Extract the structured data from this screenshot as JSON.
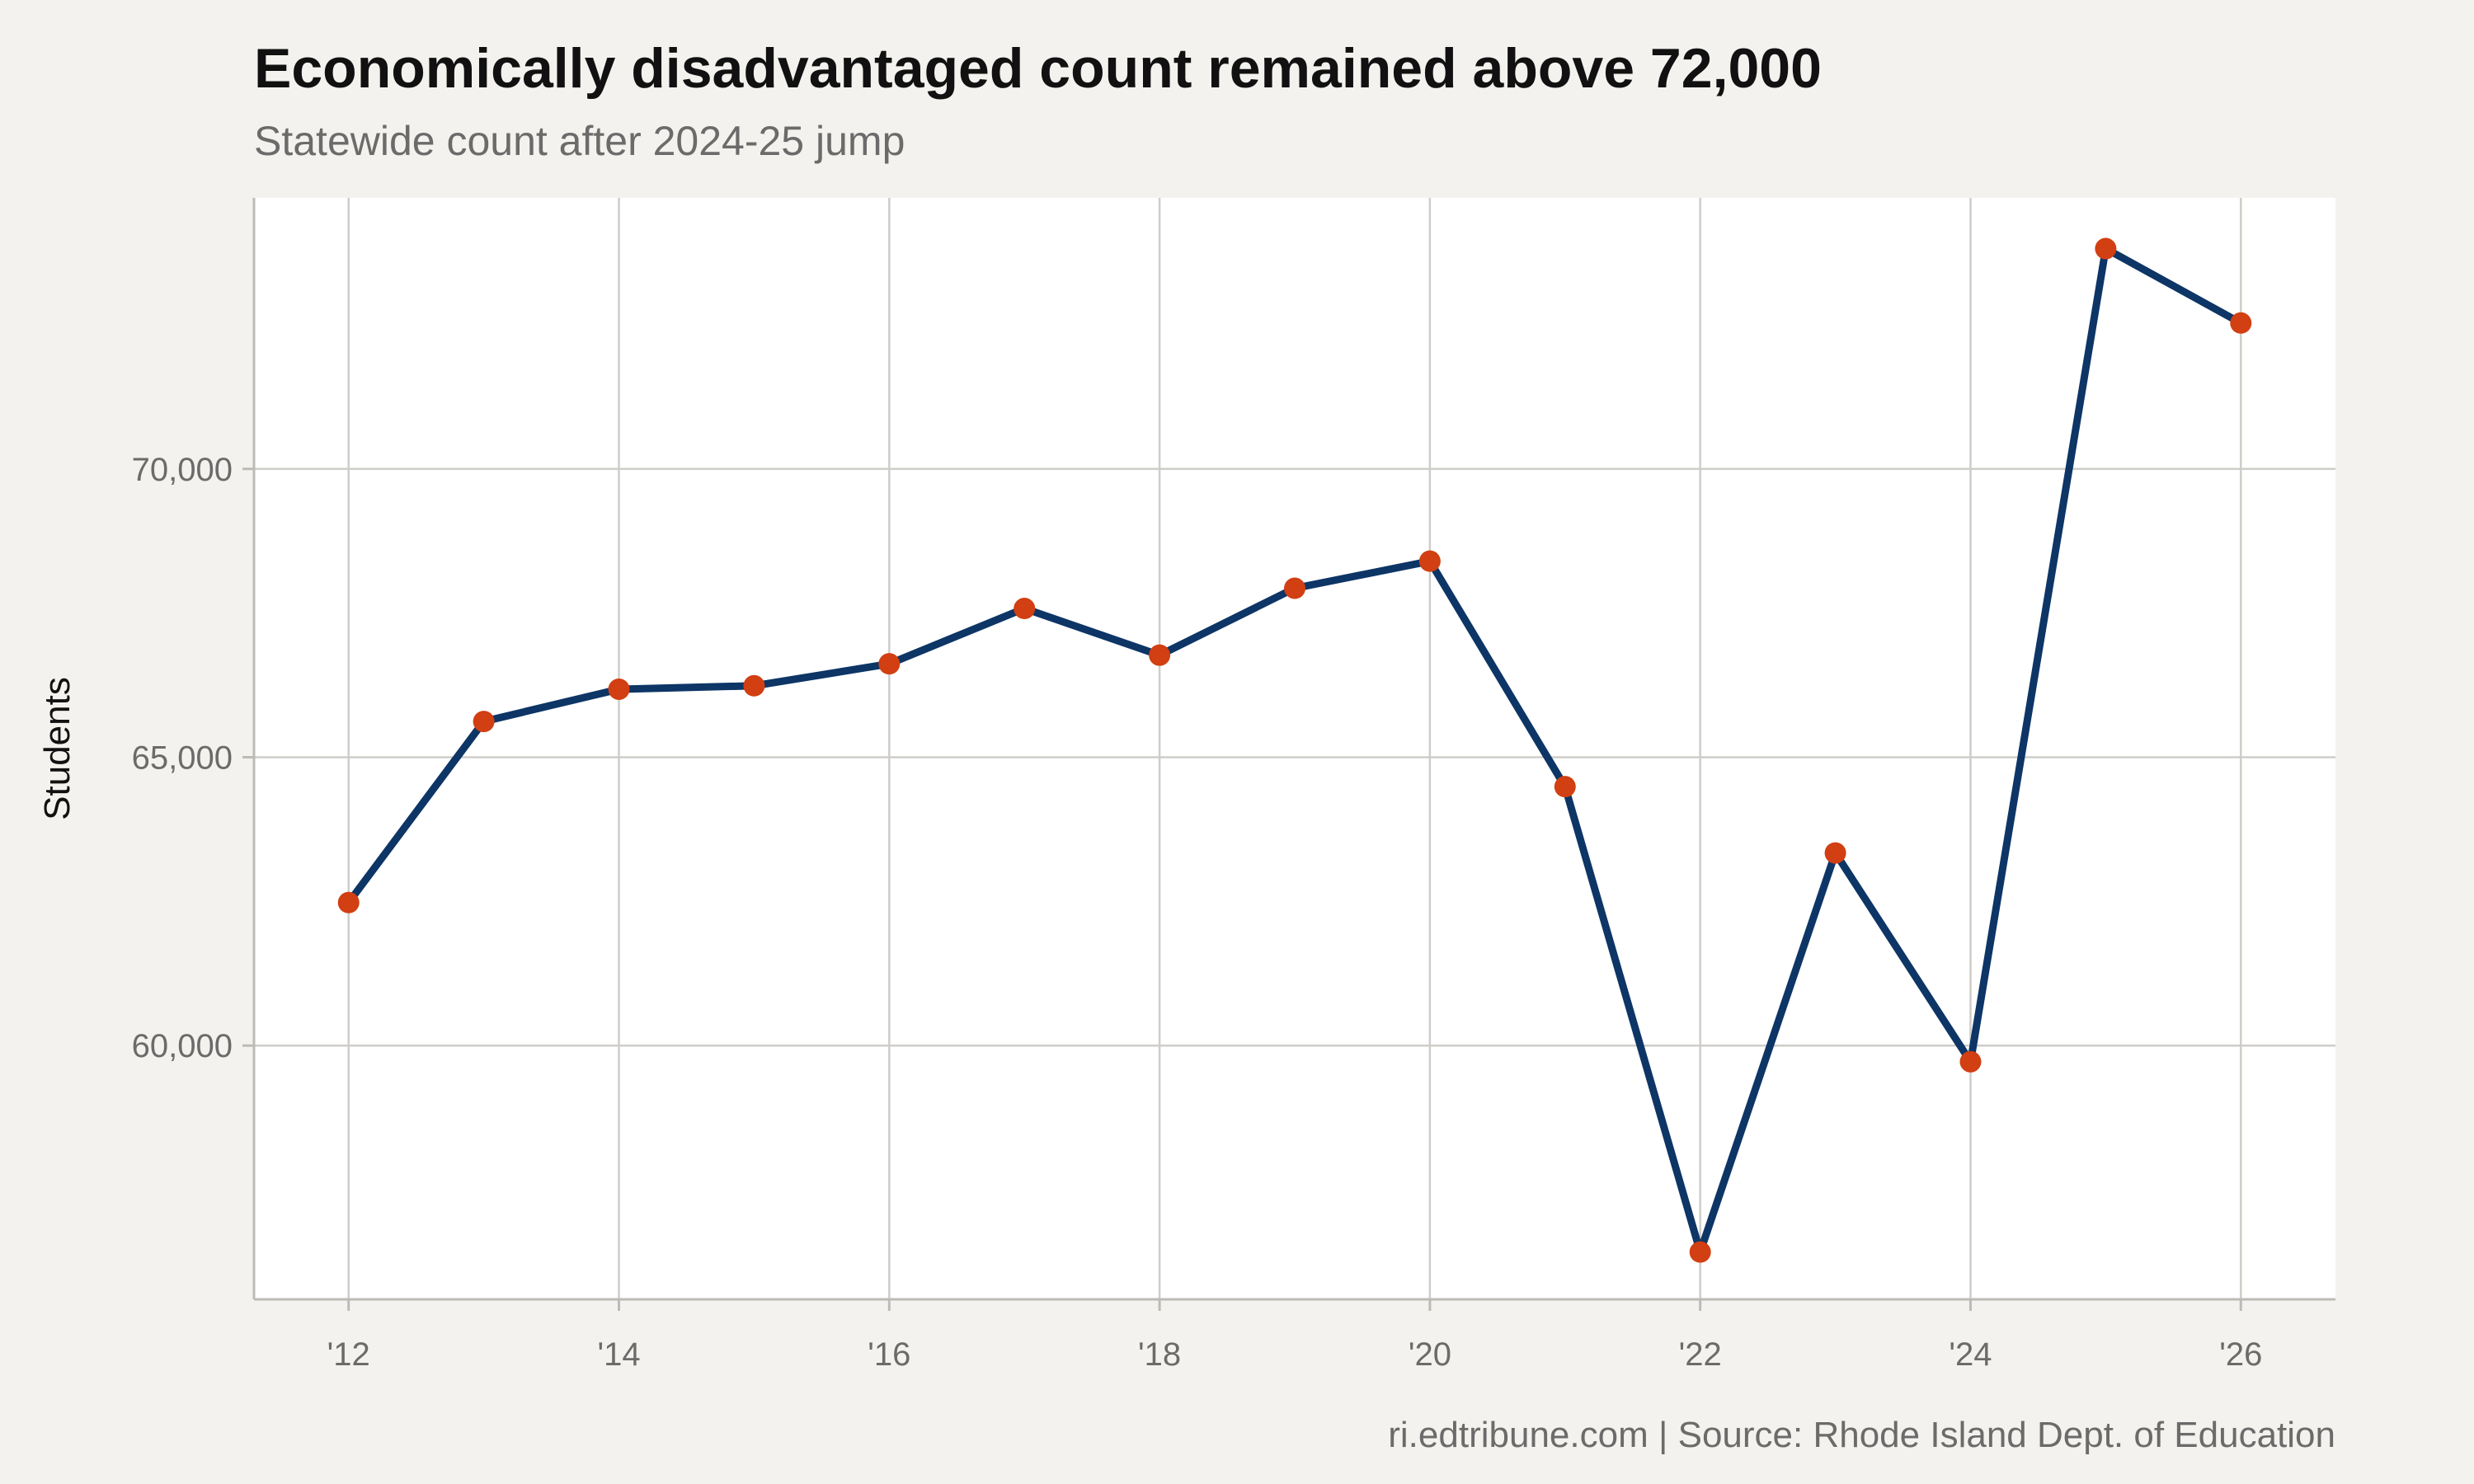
{
  "title": "Economically disadvantaged count remained above 72,000",
  "subtitle": "Statewide count after 2024-25 jump",
  "caption": "ri.edtribune.com | Source: Rhode Island Dept. of Education",
  "colors": {
    "background": "#f4f2ee",
    "plot_background": "#ffffff",
    "line": "#0d3566",
    "marker": "#d13f12",
    "grid": "#cfcdc8",
    "axis": "#bdbbb6"
  },
  "chart_data": {
    "type": "line",
    "ylabel": "Students",
    "xlabel": "",
    "x": [
      2012,
      2013,
      2014,
      2015,
      2016,
      2017,
      2018,
      2019,
      2020,
      2021,
      2022,
      2023,
      2024,
      2025,
      2026
    ],
    "values": [
      62480,
      65620,
      66180,
      66240,
      66620,
      67580,
      66770,
      67930,
      68400,
      64490,
      56420,
      63340,
      59720,
      73820,
      72530
    ],
    "xlim": [
      2011.3,
      2026.7
    ],
    "ylim": [
      55600,
      74700
    ],
    "x_ticks": [
      2012,
      2014,
      2016,
      2018,
      2020,
      2022,
      2024,
      2026
    ],
    "x_tick_labels": [
      "'12",
      "'14",
      "'16",
      "'18",
      "'20",
      "'22",
      "'24",
      "'26"
    ],
    "y_ticks": [
      60000,
      65000,
      70000
    ],
    "y_tick_labels": [
      "60,000",
      "65,000",
      "70,000"
    ],
    "grid": true,
    "legend": "none"
  }
}
